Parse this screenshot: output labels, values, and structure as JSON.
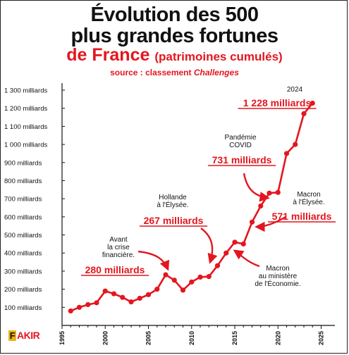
{
  "title": {
    "line1": "Évolution des 500",
    "line2": "plus grandes fortunes",
    "line3": "de France",
    "line3_sub": "(patrimoines cumulés)"
  },
  "source": {
    "prefix": "source : classement ",
    "name": "Challenges"
  },
  "logo": {
    "letter": "F",
    "rest": "AKIR"
  },
  "colors": {
    "accent": "#e3161f",
    "text": "#111111",
    "logo_mark": "#e8b21a"
  },
  "chart_data": {
    "type": "line",
    "x": [
      1996,
      1997,
      1998,
      1999,
      2000,
      2001,
      2002,
      2003,
      2004,
      2005,
      2006,
      2007,
      2008,
      2009,
      2010,
      2011,
      2012,
      2013,
      2014,
      2015,
      2016,
      2017,
      2018,
      2019,
      2020,
      2021,
      2022,
      2023,
      2024
    ],
    "y": [
      80,
      100,
      115,
      125,
      190,
      175,
      155,
      130,
      150,
      170,
      200,
      280,
      250,
      195,
      240,
      267,
      270,
      330,
      400,
      460,
      450,
      571,
      660,
      731,
      735,
      950,
      1000,
      1170,
      1228
    ],
    "xlim": [
      1995,
      2025
    ],
    "ylim": [
      0,
      1350
    ],
    "xticks": [
      "1995",
      "2000",
      "2005",
      "2010",
      "2015",
      "2020",
      "2025"
    ],
    "yticks": [
      {
        "value": 100,
        "label": "100 milliards"
      },
      {
        "value": 200,
        "label": "200 milliards"
      },
      {
        "value": 300,
        "label": "300 milliards"
      },
      {
        "value": 400,
        "label": "400 milliards"
      },
      {
        "value": 500,
        "label": "500 milliards"
      },
      {
        "value": 600,
        "label": "600 milliards"
      },
      {
        "value": 700,
        "label": "700 milliards"
      },
      {
        "value": 800,
        "label": "800 milliards"
      },
      {
        "value": 900,
        "label": "900 milliards"
      },
      {
        "value": 1000,
        "label": "1 000 milliards"
      },
      {
        "value": 1100,
        "label": "1 100 milliards"
      },
      {
        "value": 1200,
        "label": "1 200 milliards"
      },
      {
        "value": 1300,
        "label": "1 300 milliards"
      }
    ],
    "annotations": [
      {
        "lines": [
          "Avant",
          "la crise",
          "financière."
        ],
        "value": "280 milliards"
      },
      {
        "lines": [
          "Hollande",
          "à l'Élysée."
        ],
        "value": "267 milliards"
      },
      {
        "lines": [
          "Pandémie",
          "COVID"
        ],
        "value": "731 milliards"
      },
      {
        "lines": [
          "Macron",
          "à l'Élysée."
        ],
        "value": "571 milliards"
      },
      {
        "lines": [
          "Macron",
          "au ministère",
          "de l'Économie."
        ],
        "value": ""
      },
      {
        "lines": [
          "2024"
        ],
        "value": "1 228 milliards"
      }
    ]
  }
}
